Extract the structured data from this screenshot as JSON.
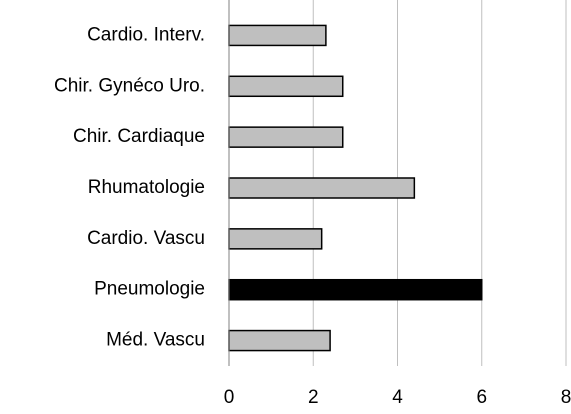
{
  "chart_data": {
    "type": "barh",
    "categories": [
      "Cardio. Interv.",
      "Chir. Gynéco Uro.",
      "Chir. Cardiaque",
      "Rhumatologie",
      "Cardio. Vascu",
      "Pneumologie",
      "Méd. Vascu"
    ],
    "values": [
      2.3,
      2.7,
      2.7,
      4.4,
      2.2,
      6.0,
      2.4
    ],
    "colors": [
      "#bfbfbf",
      "#bfbfbf",
      "#bfbfbf",
      "#bfbfbf",
      "#bfbfbf",
      "#000000",
      "#bfbfbf"
    ],
    "xlim": [
      0,
      8
    ],
    "xticks": [
      0,
      2,
      4,
      6,
      8
    ],
    "grid": true
  }
}
